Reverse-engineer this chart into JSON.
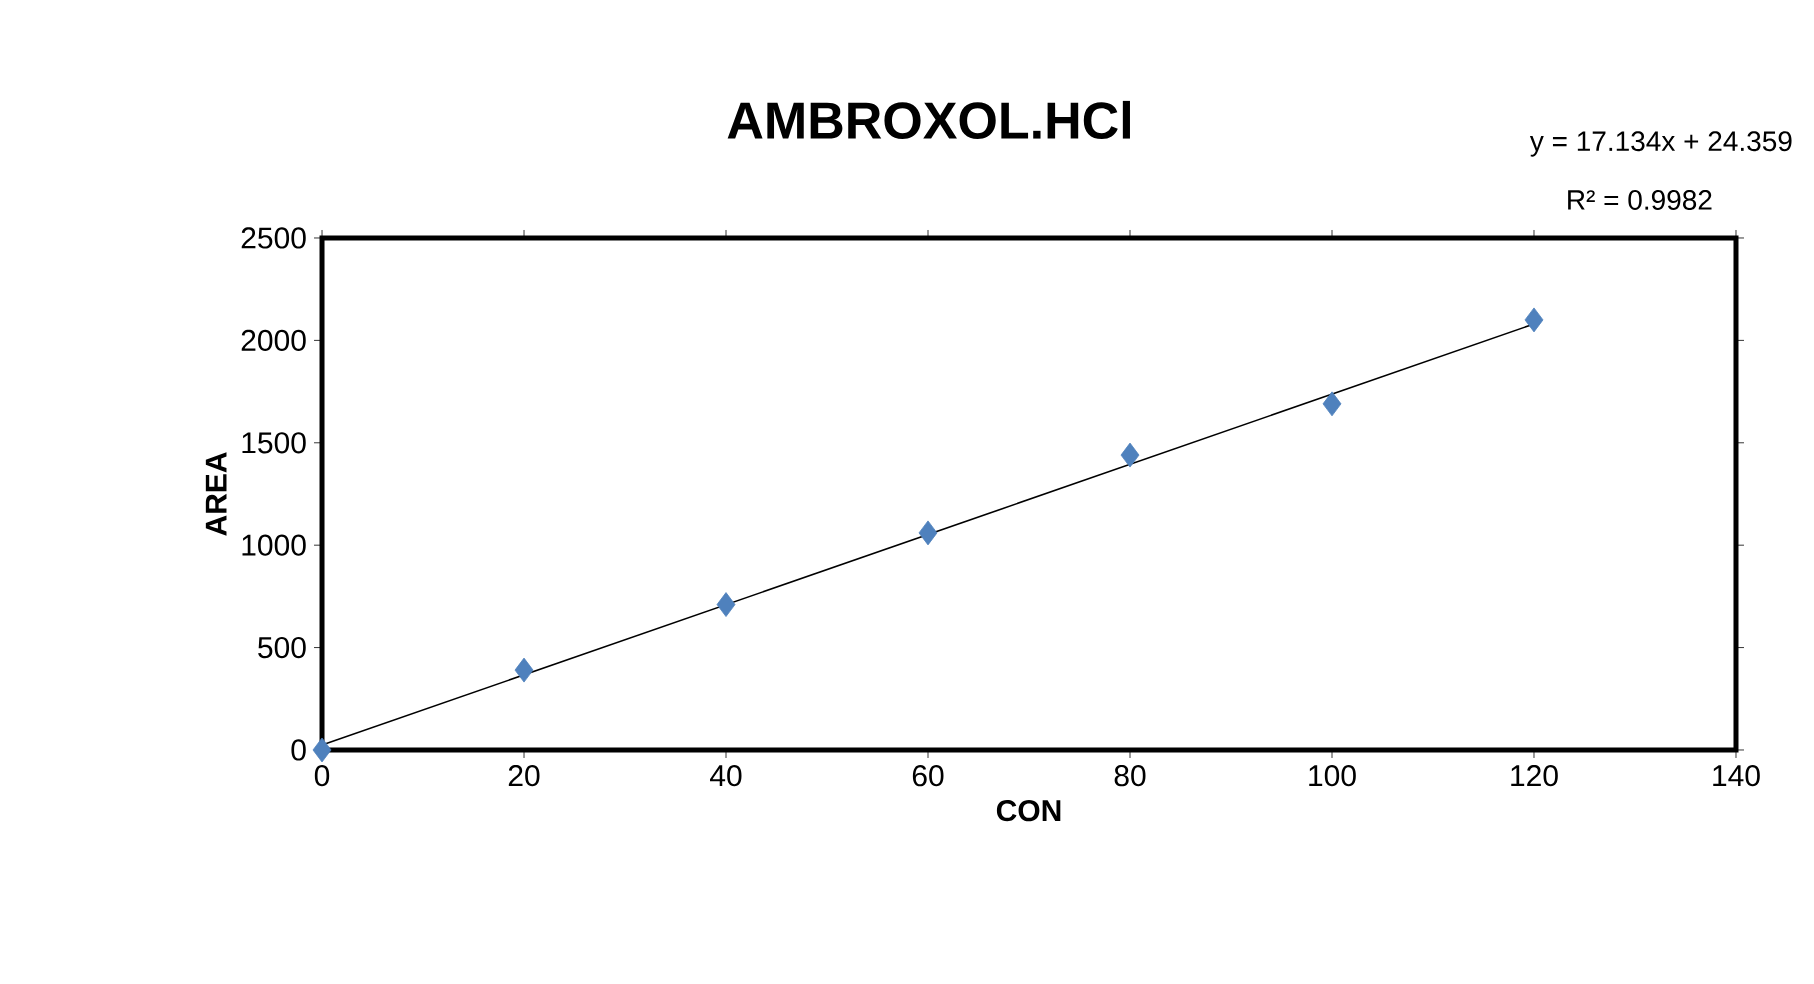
{
  "chart_data": {
    "type": "scatter",
    "title": "AMBROXOL.HCl",
    "xlabel": "CON",
    "ylabel": "AREA",
    "series": [
      {
        "color": "#4f81bd",
        "marker": "diamond",
        "x": [
          0,
          20,
          40,
          60,
          80,
          100,
          120
        ],
        "values": [
          0,
          390,
          710,
          1060,
          1440,
          1690,
          2100
        ]
      },
      {
        "type": "line",
        "color": "#000000",
        "marker": "none",
        "line_style": "solid",
        "x": [
          0,
          120
        ],
        "values": [
          24,
          2080
        ]
      }
    ],
    "annotations": [
      "y = 17.134x + 24.359",
      "R² = 0.9982"
    ],
    "xlim": [
      0,
      140
    ],
    "xticks": [
      0,
      20,
      40,
      60,
      80,
      100,
      120,
      140
    ],
    "ylim": [
      0,
      2500
    ],
    "yticks": [
      0,
      500,
      1000,
      1500,
      2000,
      2500
    ],
    "grid": false
  }
}
